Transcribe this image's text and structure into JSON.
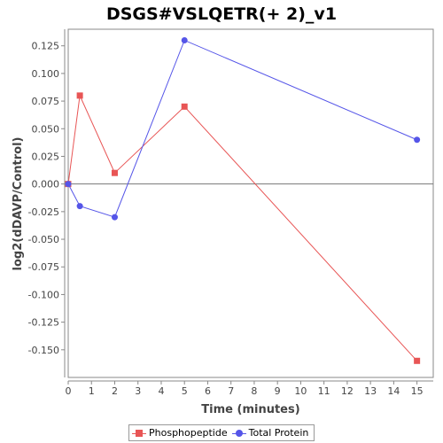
{
  "chart_data": {
    "type": "line",
    "title": "DSGS#VSLQETR(+ 2)_v1",
    "xlabel": "Time (minutes)",
    "ylabel": "log2(dDAVP/Control)",
    "xlim": [
      0,
      15.7
    ],
    "ylim": [
      -0.175,
      0.14
    ],
    "xticks": [
      0,
      1,
      2,
      3,
      4,
      5,
      6,
      7,
      8,
      9,
      10,
      11,
      12,
      13,
      14,
      15
    ],
    "yticks": [
      -0.15,
      -0.125,
      -0.1,
      -0.075,
      -0.05,
      -0.025,
      0.0,
      0.025,
      0.05,
      0.075,
      0.1,
      0.125
    ],
    "ytick_labels": [
      "-0.150",
      "-0.125",
      "-0.100",
      "-0.075",
      "-0.050",
      "-0.025",
      "0.000",
      "0.025",
      "0.050",
      "0.075",
      "0.100",
      "0.125"
    ],
    "grid": false,
    "legend_position": "bottom-center",
    "series": [
      {
        "name": "Phosphopeptide",
        "color": "#e85555",
        "marker": "square",
        "x": [
          0,
          0.5,
          2,
          5,
          15
        ],
        "y": [
          0.0,
          0.08,
          0.01,
          0.07,
          -0.16
        ]
      },
      {
        "name": "Total Protein",
        "color": "#5555e8",
        "marker": "circle",
        "x": [
          0,
          0.5,
          2,
          5,
          15
        ],
        "y": [
          0.0,
          -0.02,
          -0.03,
          0.13,
          0.04
        ]
      }
    ]
  }
}
